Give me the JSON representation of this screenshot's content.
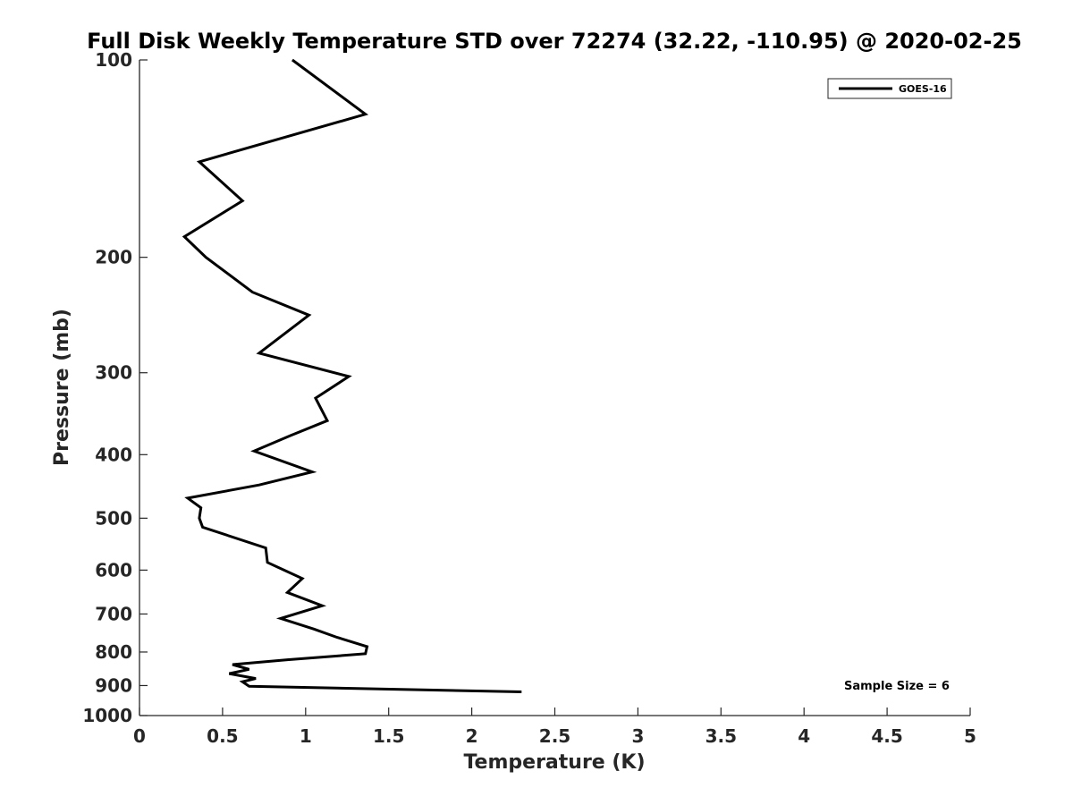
{
  "chart_data": {
    "type": "line",
    "title": "Full Disk Weekly Temperature STD over 72274 (32.22, -110.95) @ 2020-02-25",
    "xlabel": "Temperature (K)",
    "ylabel": "Pressure (mb)",
    "xlim": [
      0,
      5
    ],
    "ylim": [
      100,
      1000
    ],
    "y_scale": "log",
    "y_reversed": true,
    "x_ticks": [
      "0",
      "0.5",
      "1",
      "1.5",
      "2",
      "2.5",
      "3",
      "3.5",
      "4",
      "4.5",
      "5"
    ],
    "y_ticks": [
      "100",
      "200",
      "300",
      "400",
      "500",
      "600",
      "700",
      "800",
      "900",
      "1000"
    ],
    "grid": false,
    "legend_position": "top-right",
    "series": [
      {
        "name": "GOES-16",
        "color": "#000000",
        "points": [
          [
            0.92,
            100
          ],
          [
            1.36,
            121
          ],
          [
            0.36,
            143
          ],
          [
            0.62,
            164
          ],
          [
            0.27,
            186
          ],
          [
            0.4,
            200
          ],
          [
            0.68,
            226
          ],
          [
            1.02,
            245
          ],
          [
            0.72,
            280
          ],
          [
            1.26,
            304
          ],
          [
            1.06,
            328
          ],
          [
            1.13,
            355
          ],
          [
            0.91,
            374
          ],
          [
            0.69,
            395
          ],
          [
            1.04,
            425
          ],
          [
            0.72,
            445
          ],
          [
            0.29,
            466
          ],
          [
            0.37,
            482
          ],
          [
            0.36,
            500
          ],
          [
            0.38,
            516
          ],
          [
            0.76,
            555
          ],
          [
            0.77,
            584
          ],
          [
            0.98,
            618
          ],
          [
            0.89,
            649
          ],
          [
            1.1,
            680
          ],
          [
            0.85,
            711
          ],
          [
            1.05,
            738
          ],
          [
            1.19,
            760
          ],
          [
            1.37,
            785
          ],
          [
            1.36,
            805
          ],
          [
            0.89,
            822
          ],
          [
            0.56,
            836
          ],
          [
            0.66,
            850
          ],
          [
            0.54,
            863
          ],
          [
            0.7,
            878
          ],
          [
            0.62,
            888
          ],
          [
            0.66,
            902
          ],
          [
            2.3,
            920
          ]
        ]
      }
    ],
    "annotation": "Sample Size = 6"
  }
}
